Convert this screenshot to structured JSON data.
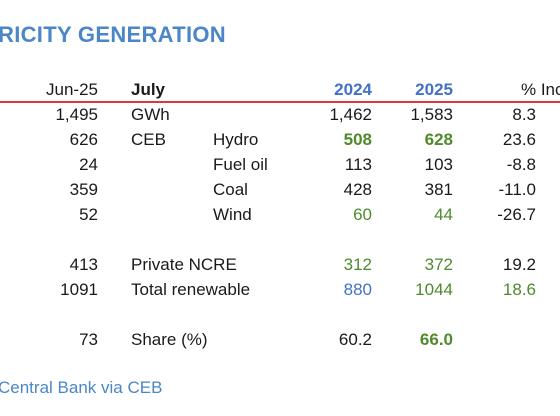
{
  "title": "RICITY GENERATION",
  "header": {
    "prev_month": "Jun-25",
    "month": "July",
    "year1": "2024",
    "year2": "2025",
    "change": "% Inc"
  },
  "rows": [
    {
      "prev": "1,495",
      "label": "GWh",
      "sub": "",
      "v2024": "1,462",
      "v2025": "1,583",
      "pct": "8.3"
    },
    {
      "prev": "626",
      "label": "CEB",
      "sub": "Hydro",
      "v2024": "508",
      "v2025": "628",
      "pct": "23.6"
    },
    {
      "prev": "24",
      "label": "",
      "sub": "Fuel oil",
      "v2024": "113",
      "v2025": "103",
      "pct": "-8.8"
    },
    {
      "prev": "359",
      "label": "",
      "sub": "Coal",
      "v2024": "428",
      "v2025": "381",
      "pct": "-11.0"
    },
    {
      "prev": "52",
      "label": "",
      "sub": "Wind",
      "v2024": "60",
      "v2025": "44",
      "pct": "-26.7"
    },
    {
      "prev": "413",
      "label": "Private NCRE",
      "sub": "",
      "v2024": "312",
      "v2025": "372",
      "pct": "19.2"
    },
    {
      "prev": "1091",
      "label": "Total renewable",
      "sub": "",
      "v2024": "880",
      "v2025": "1044",
      "pct": "18.6"
    },
    {
      "prev": "73",
      "label": "Share (%)",
      "sub": "",
      "v2024": "60.2",
      "v2025": "66.0",
      "pct": ""
    }
  ],
  "footer": "Central Bank via CEB",
  "colors": {
    "title": "#4a86c8",
    "header_line": "#d93a3a",
    "green": "#4f8a2d",
    "blue": "#4372c4"
  }
}
